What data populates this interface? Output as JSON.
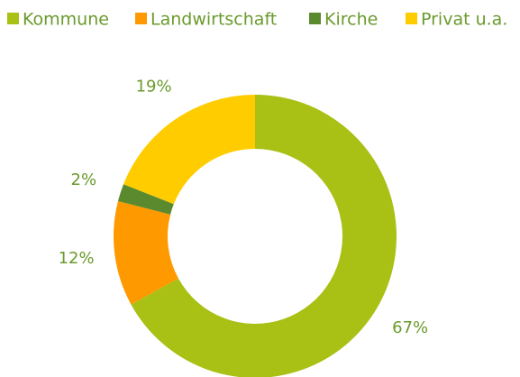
{
  "chart_data": {
    "type": "donut",
    "categories": [
      "Kommune",
      "Landwirtschaft",
      "Kirche",
      "Privat u.a."
    ],
    "values": [
      67,
      12,
      2,
      19
    ],
    "value_labels": [
      "67%",
      "12%",
      "2%",
      "19%"
    ],
    "colors": [
      "#a9c015",
      "#ff9900",
      "#5b8a2e",
      "#ffcc00"
    ],
    "legend": "top"
  }
}
